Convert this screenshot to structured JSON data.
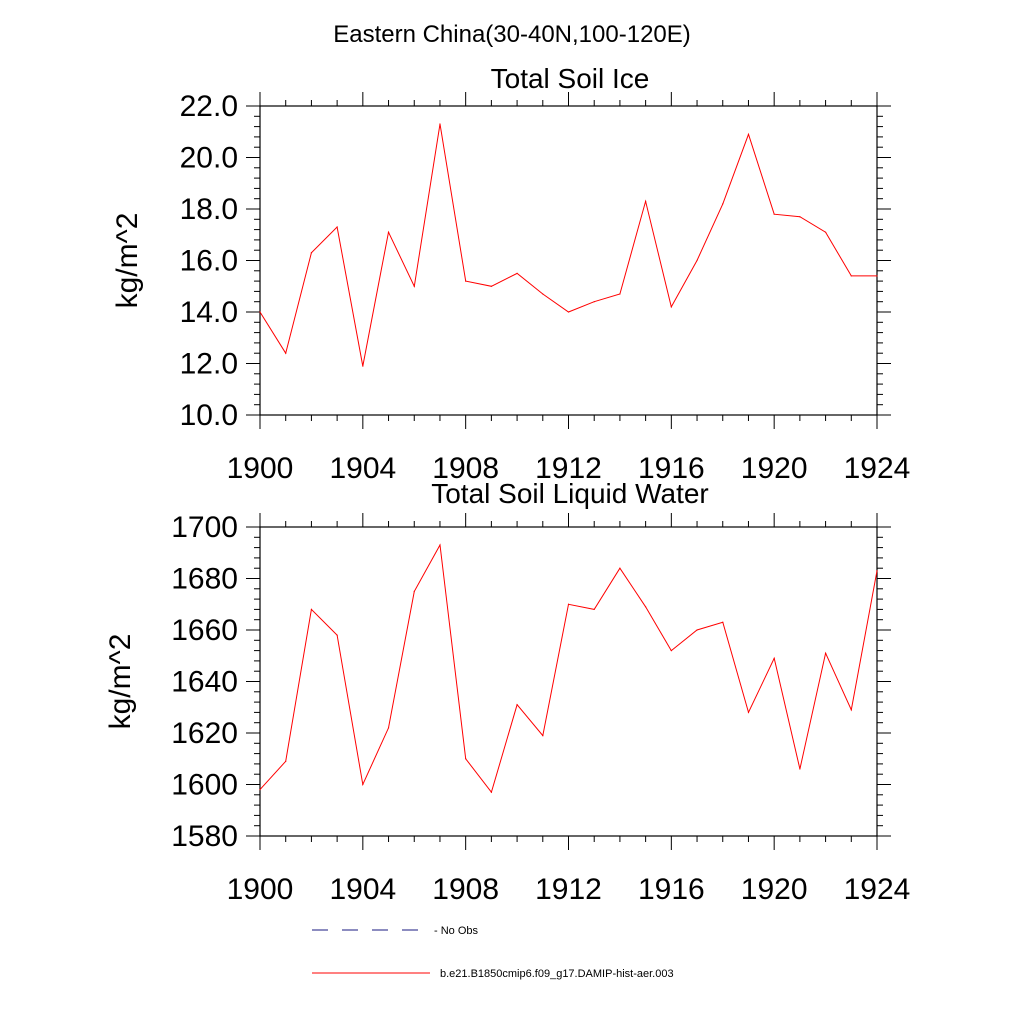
{
  "figure_title": "Eastern China(30-40N,100-120E)",
  "legend": {
    "no_obs_label": "- No Obs",
    "run_label": "b.e21.B1850cmip6.f09_g17.DAMIP-hist-aer.003",
    "no_obs_color": "#1a1a80",
    "run_color": "#ff0000"
  },
  "chart_data": [
    {
      "type": "line",
      "title": "Total Soil Ice",
      "xlabel": "",
      "ylabel": "kg/m^2",
      "xlim": [
        1900,
        1924
      ],
      "ylim": [
        10.0,
        22.0
      ],
      "xticks": [
        1900,
        1904,
        1908,
        1912,
        1916,
        1920,
        1924
      ],
      "xtick_labels": [
        "1900",
        "1904",
        "1908",
        "1912",
        "1916",
        "1920",
        "1924"
      ],
      "yticks": [
        10,
        12,
        14,
        16,
        18,
        20,
        22
      ],
      "ytick_labels": [
        "10.0",
        "12.0",
        "14.0",
        "16.0",
        "18.0",
        "20.0",
        "22.0"
      ],
      "x": [
        1900,
        1901,
        1902,
        1903,
        1904,
        1905,
        1906,
        1907,
        1908,
        1909,
        1910,
        1911,
        1912,
        1913,
        1914,
        1915,
        1916,
        1917,
        1918,
        1919,
        1920,
        1921,
        1922,
        1923,
        1924
      ],
      "series": [
        {
          "color": "#ff0000",
          "values": [
            14.0,
            12.4,
            16.3,
            17.3,
            11.9,
            17.1,
            15.0,
            21.3,
            15.2,
            15.0,
            15.5,
            14.7,
            14.0,
            14.4,
            14.7,
            18.3,
            14.2,
            16.0,
            18.2,
            20.9,
            17.8,
            17.7,
            17.1,
            15.4,
            15.4
          ]
        }
      ]
    },
    {
      "type": "line",
      "title": "Total Soil Liquid Water",
      "xlabel": "",
      "ylabel": "kg/m^2",
      "xlim": [
        1900,
        1924
      ],
      "ylim": [
        1580,
        1700
      ],
      "xticks": [
        1900,
        1904,
        1908,
        1912,
        1916,
        1920,
        1924
      ],
      "xtick_labels": [
        "1900",
        "1904",
        "1908",
        "1912",
        "1916",
        "1920",
        "1924"
      ],
      "yticks": [
        1580,
        1600,
        1620,
        1640,
        1660,
        1680,
        1700
      ],
      "ytick_labels": [
        "1580",
        "1600",
        "1620",
        "1640",
        "1660",
        "1680",
        "1700"
      ],
      "x": [
        1900,
        1901,
        1902,
        1903,
        1904,
        1905,
        1906,
        1907,
        1908,
        1909,
        1910,
        1911,
        1912,
        1913,
        1914,
        1915,
        1916,
        1917,
        1918,
        1919,
        1920,
        1921,
        1922,
        1923,
        1924
      ],
      "series": [
        {
          "color": "#ff0000",
          "values": [
            1598,
            1609,
            1668,
            1658,
            1600,
            1622,
            1675,
            1693,
            1610,
            1597,
            1631,
            1619,
            1670,
            1668,
            1684,
            1669,
            1652,
            1660,
            1663,
            1628,
            1649,
            1606,
            1651,
            1629,
            1683
          ]
        }
      ]
    }
  ]
}
